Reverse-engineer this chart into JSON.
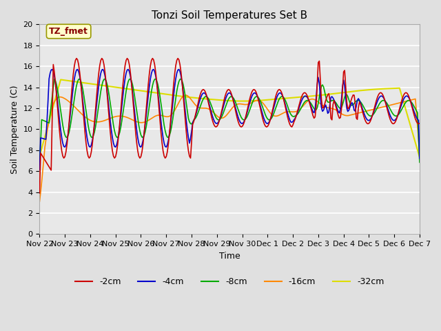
{
  "title": "Tonzi Soil Temperatures Set B",
  "xlabel": "Time",
  "ylabel": "Soil Temperature (C)",
  "annotation": "TZ_fmet",
  "ylim": [
    0,
    20
  ],
  "yticks": [
    0,
    2,
    4,
    6,
    8,
    10,
    12,
    14,
    16,
    18,
    20
  ],
  "colors": {
    "-2cm": "#cc0000",
    "-4cm": "#0000cc",
    "-8cm": "#00aa00",
    "-16cm": "#ff8800",
    "-32cm": "#dddd00"
  },
  "legend_labels": [
    "-2cm",
    "-4cm",
    "-8cm",
    "-16cm",
    "-32cm"
  ],
  "background_color": "#e0e0e0",
  "plot_bg_color": "#e8e8e8",
  "annotation_bg": "#ffffcc",
  "annotation_fg": "#880000",
  "xtick_labels": [
    "Nov 22",
    "Nov 23",
    "Nov 24",
    "Nov 25",
    "Nov 26",
    "Nov 27",
    "Nov 28",
    "Nov 29",
    "Nov 30",
    "Dec 1",
    "Dec 2",
    "Dec 3",
    "Dec 4",
    "Dec 5",
    "Dec 6",
    "Dec 7"
  ],
  "figsize": [
    6.4,
    4.8
  ],
  "dpi": 100
}
